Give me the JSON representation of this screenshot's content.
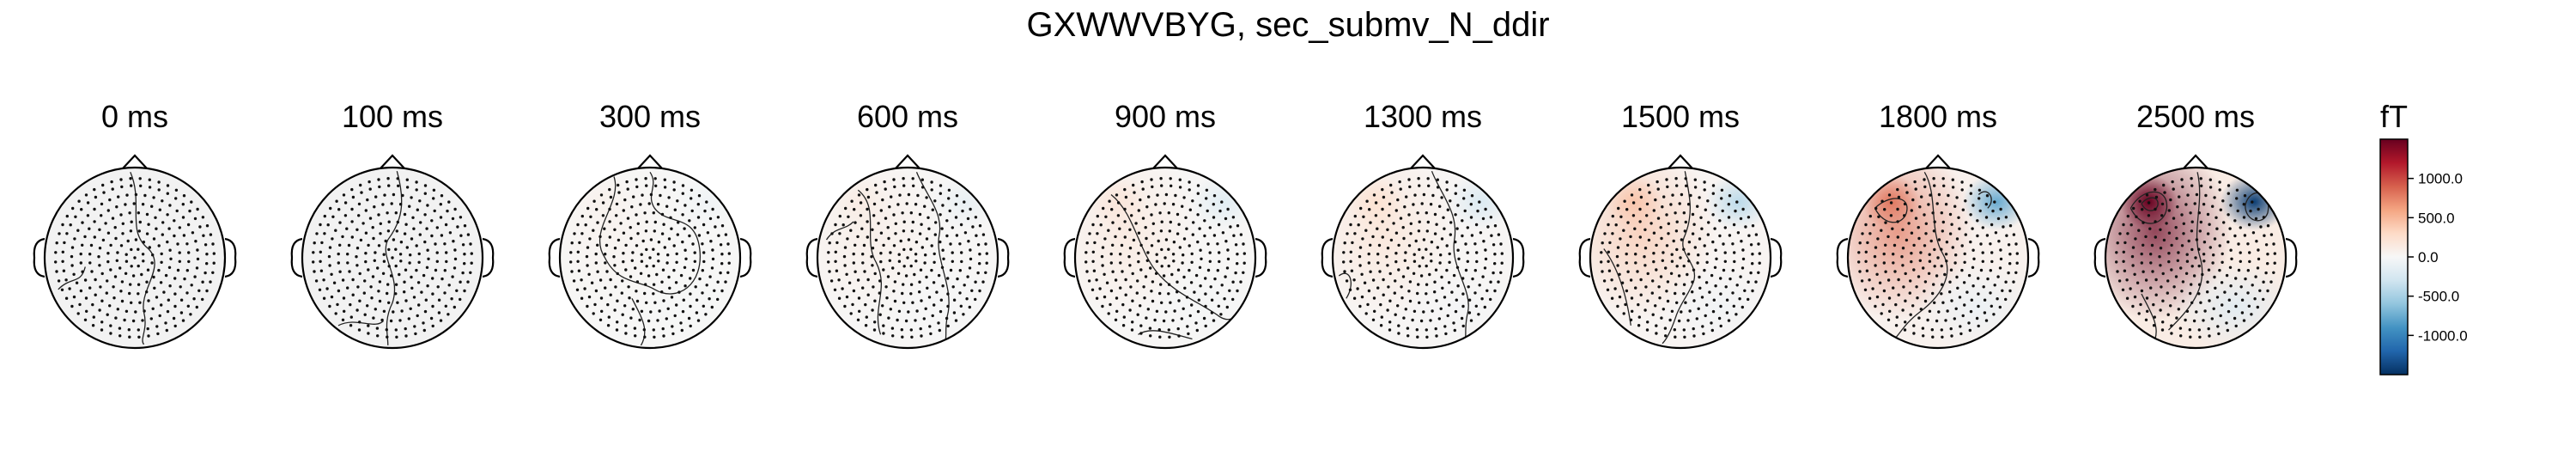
{
  "figure": {
    "title": "GXWWVBYG, sec_submv_N_ddir"
  },
  "chart_data": {
    "type": "heatmap",
    "title": "GXWWVBYG, sec_submv_N_ddir",
    "subplots": [
      {
        "label": "0 ms",
        "time_ms": 0,
        "peak": 0
      },
      {
        "label": "100 ms",
        "time_ms": 100,
        "peak": 0
      },
      {
        "label": "300 ms",
        "time_ms": 300,
        "peak": 60
      },
      {
        "label": "600 ms",
        "time_ms": 600,
        "peak": 120
      },
      {
        "label": "900 ms",
        "time_ms": 900,
        "peak": 180
      },
      {
        "label": "1300 ms",
        "time_ms": 1300,
        "peak": 230
      },
      {
        "label": "1500 ms",
        "time_ms": 1500,
        "peak": 420
      },
      {
        "label": "1800 ms",
        "time_ms": 1800,
        "peak": 800
      },
      {
        "label": "2500 ms",
        "time_ms": 2500,
        "peak": 1500
      }
    ],
    "colorbar": {
      "unit": "fT",
      "range": [
        -1500,
        1500
      ],
      "ticks": [
        {
          "value": 1000,
          "label": "1000.0"
        },
        {
          "value": 500,
          "label": "500.0"
        },
        {
          "value": 0,
          "label": "0.0"
        },
        {
          "value": -500,
          "label": "-500.0"
        },
        {
          "value": -1000,
          "label": "-1000.0"
        }
      ]
    },
    "colormap": {
      "name": "RdBu_r",
      "stops": [
        "#67001f",
        "#b2182b",
        "#d6604d",
        "#f4a582",
        "#fddbc7",
        "#f7f7f7",
        "#d1e5f0",
        "#92c5de",
        "#4393c3",
        "#2166ac",
        "#053061"
      ]
    },
    "grid": false,
    "legend": "none"
  }
}
